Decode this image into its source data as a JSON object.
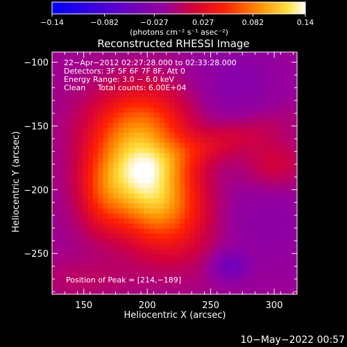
{
  "chart_data": {
    "type": "heatmap",
    "title": "Reconstructed RHESSI Image",
    "xlabel": "Heliocentric X (arcsec)",
    "ylabel": "Heliocentric Y (arcsec)",
    "xlim": [
      125,
      318
    ],
    "ylim": [
      -282,
      -92
    ],
    "x_ticks": [
      "150",
      "200",
      "250",
      "300"
    ],
    "x_tick_values": [
      150,
      200,
      250,
      300
    ],
    "y_ticks": [
      "−100",
      "−150",
      "−200",
      "−250"
    ],
    "y_tick_values": [
      -100,
      -150,
      -200,
      -250
    ],
    "colorbar": {
      "ticks": [
        "−0.14",
        "−0.082",
        "−0.027",
        "0.027",
        "0.082",
        "0.14"
      ],
      "tick_values": [
        -0.14,
        -0.082,
        -0.027,
        0.027,
        0.082,
        0.14
      ],
      "range": [
        -0.14,
        0.14
      ],
      "units": "(photons cm⁻² s⁻¹ asec⁻²)"
    },
    "annotations": [
      "22−Apr−2012 02:27:28.000 to 02:33:28.000",
      "Detectors: 3F 5F 6F 7F 8F, Att 0",
      "Energy Range: 3.0 − 6.0 keV",
      "Clean     Total counts: 6.00E+04"
    ],
    "peak_label": "Position of Peak = [214,−189]",
    "peak": [
      214,
      -189
    ],
    "sources": [
      {
        "x": 200,
        "y": -195,
        "sx": 24,
        "sy": 36,
        "amp": 0.14,
        "rot": -0.55
      },
      {
        "x": 200,
        "y": -145,
        "sx": 25,
        "sy": 22,
        "amp": 0.05,
        "rot": 0
      },
      {
        "x": 165,
        "y": -205,
        "sx": 14,
        "sy": 22,
        "amp": 0.04,
        "rot": 0
      },
      {
        "x": 250,
        "y": -165,
        "sx": 40,
        "sy": 10,
        "amp": 0.03,
        "rot": -0.3
      },
      {
        "x": 300,
        "y": -180,
        "sx": 18,
        "sy": 14,
        "amp": 0.03,
        "rot": 0
      },
      {
        "x": 150,
        "y": -270,
        "sx": 30,
        "sy": 12,
        "amp": 0.015,
        "rot": 0
      },
      {
        "x": 265,
        "y": -260,
        "sx": 10,
        "sy": 8,
        "amp": -0.04,
        "rot": 0
      },
      {
        "x": 270,
        "y": -115,
        "sx": 22,
        "sy": 20,
        "amp": -0.02,
        "rot": 0
      },
      {
        "x": 290,
        "y": -225,
        "sx": 25,
        "sy": 25,
        "amp": -0.015,
        "rot": 0
      }
    ],
    "background": -0.012
  },
  "timestamp": "10−May−2022 00:57"
}
